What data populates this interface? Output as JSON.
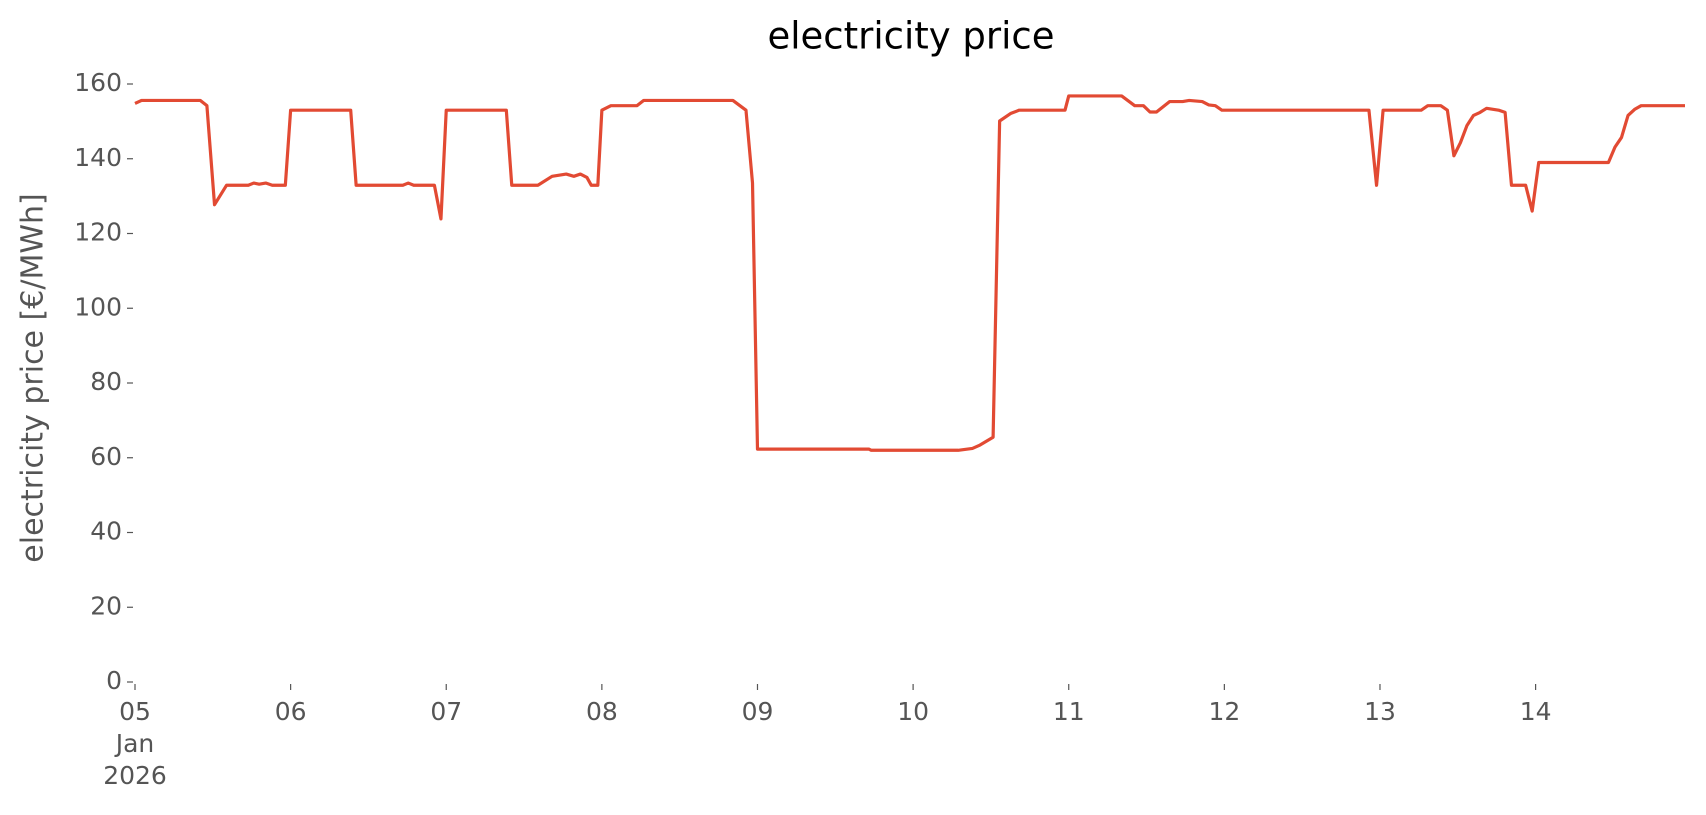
{
  "chart_data": {
    "type": "line",
    "title": "electricity price",
    "ylabel": "electricity price [€/MWh]",
    "color": "#e24a33",
    "x": [
      5.0,
      5.042,
      5.42,
      5.462,
      5.511,
      5.588,
      5.728,
      5.763,
      5.798,
      5.84,
      5.882,
      5.966,
      6.0,
      6.386,
      6.421,
      6.721,
      6.756,
      6.791,
      6.924,
      6.966,
      7.0,
      7.386,
      7.421,
      7.589,
      7.68,
      7.771,
      7.82,
      7.862,
      7.904,
      7.932,
      7.974,
      8.0,
      8.058,
      8.226,
      8.268,
      8.842,
      8.926,
      8.968,
      9.0,
      9.717,
      9.731,
      10.29,
      10.381,
      10.43,
      10.514,
      10.556,
      10.626,
      10.682,
      10.976,
      11.0,
      11.34,
      11.424,
      11.48,
      11.522,
      11.564,
      11.648,
      11.732,
      11.774,
      11.858,
      11.9,
      11.942,
      11.984,
      12.929,
      12.978,
      13.02,
      13.265,
      13.307,
      13.391,
      13.433,
      13.475,
      13.517,
      13.559,
      13.601,
      13.643,
      13.685,
      13.762,
      13.804,
      13.845,
      13.936,
      13.978,
      14.02,
      14.468,
      14.51,
      14.552,
      14.594,
      14.636,
      14.678,
      14.96
    ],
    "values": [
      154.8,
      155.6,
      155.6,
      154.2,
      127.7,
      132.9,
      132.9,
      133.5,
      133.2,
      133.5,
      132.9,
      132.9,
      153.0,
      153.0,
      132.9,
      132.9,
      133.5,
      132.9,
      132.9,
      123.9,
      153.0,
      153.0,
      132.9,
      132.9,
      135.3,
      135.9,
      135.3,
      135.9,
      135.0,
      132.9,
      132.9,
      153.0,
      154.2,
      154.2,
      155.6,
      155.6,
      153.0,
      133.5,
      62.3,
      62.3,
      62.0,
      62.0,
      62.5,
      63.4,
      65.5,
      150.1,
      152.1,
      153.0,
      153.0,
      156.8,
      156.8,
      154.2,
      154.2,
      152.5,
      152.5,
      155.3,
      155.3,
      155.6,
      155.3,
      154.4,
      154.2,
      153.0,
      153.0,
      132.9,
      153.0,
      153.0,
      154.2,
      154.2,
      153.0,
      140.8,
      144.3,
      148.9,
      151.6,
      152.4,
      153.5,
      153.0,
      152.4,
      132.9,
      132.9,
      126.0,
      139.0,
      139.0,
      143.1,
      145.7,
      151.6,
      153.2,
      154.2,
      154.2
    ],
    "xlim": [
      5.0,
      14.96
    ],
    "xticks": [
      {
        "value": 5,
        "label": "05\nJan\n2026"
      },
      {
        "value": 6,
        "label": "06"
      },
      {
        "value": 7,
        "label": "07"
      },
      {
        "value": 8,
        "label": "08"
      },
      {
        "value": 9,
        "label": "09"
      },
      {
        "value": 10,
        "label": "10"
      },
      {
        "value": 11,
        "label": "11"
      },
      {
        "value": 12,
        "label": "12"
      },
      {
        "value": 13,
        "label": "13"
      },
      {
        "value": 14,
        "label": "14"
      }
    ],
    "ylim": [
      0,
      160
    ],
    "yticks": [
      0,
      20,
      40,
      60,
      80,
      100,
      120,
      140,
      160
    ],
    "grid": false
  }
}
